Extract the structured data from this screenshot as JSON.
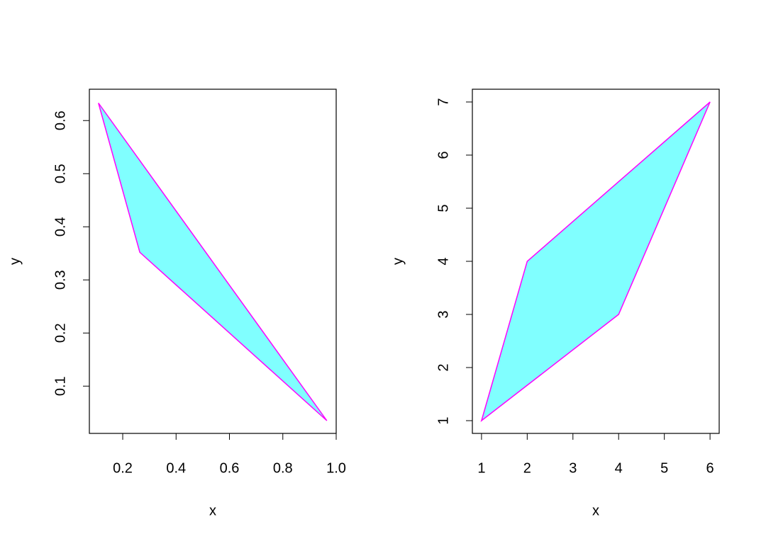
{
  "chart_data": [
    {
      "type": "polygon",
      "xlabel": "x",
      "ylabel": "y",
      "x": [
        0.109,
        0.264,
        0.965
      ],
      "y": [
        0.633,
        0.352,
        0.035
      ],
      "fill": "#80ffff",
      "color": "#ff00ff",
      "xlim": [
        0.075,
        1.0
      ],
      "ylim": [
        0.011,
        0.659
      ],
      "xticks": [
        0.2,
        0.4,
        0.6,
        0.8,
        {
          "value": 1,
          "label": "1.0"
        }
      ],
      "yticks": [
        0.1,
        0.2,
        0.3,
        0.4,
        0.5,
        0.6
      ]
    },
    {
      "type": "polygon",
      "xlabel": "x",
      "ylabel": "y",
      "x": [
        1,
        2,
        6,
        4
      ],
      "y": [
        1,
        4,
        7,
        3
      ],
      "fill": "#80ffff",
      "color": "#ff00ff",
      "xlim": [
        0.8,
        6.2
      ],
      "ylim": [
        0.76,
        7.24
      ],
      "xticks": [
        1,
        2,
        3,
        4,
        5,
        6
      ],
      "yticks": [
        1,
        2,
        3,
        4,
        5,
        6,
        7
      ]
    }
  ]
}
